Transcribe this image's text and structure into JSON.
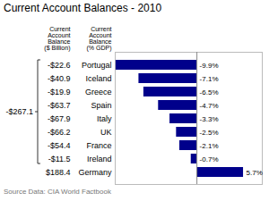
{
  "chart_data": {
    "type": "bar",
    "orientation": "horizontal",
    "title": "Current Account Balances - 2010",
    "categories": [
      "Portugal",
      "Iceland",
      "Greece",
      "Spain",
      "Italy",
      "UK",
      "France",
      "Ireland",
      "Germany"
    ],
    "values": [
      -9.9,
      -7.1,
      -6.5,
      -4.7,
      -3.3,
      -2.5,
      -2.1,
      -0.7,
      5.7
    ],
    "value_labels": [
      "-9.9%",
      "-7.1%",
      "-6.5%",
      "-4.7%",
      "-3.3%",
      "-2.5%",
      "-2.1%",
      "-0.7%",
      "5.7%"
    ],
    "data_labels": true,
    "color": "#00008B",
    "xlim": [
      -10,
      8
    ],
    "tick_labels": "y",
    "grid": false,
    "categories_header": "Current\nAccount\nBalance\n(% GDP)",
    "table": {
      "header": "Current\nAccount\nBalance\n($ Billion)",
      "values": [
        "-$22.6",
        "-$40.9",
        "-$19.9",
        "-$63.7",
        "-$67.9",
        "-$66.2",
        "-$54.4",
        "-$11.5",
        "$188.4"
      ]
    },
    "annotations": [
      {
        "text": "-$267.1"
      }
    ],
    "caption": "Source Data:  CIA World Factbook"
  }
}
